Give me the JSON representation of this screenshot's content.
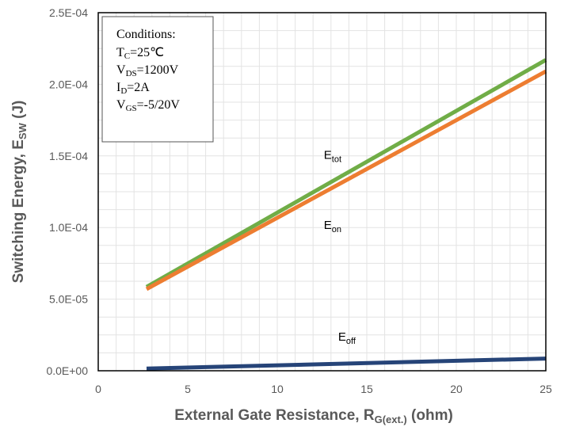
{
  "chart_data": {
    "type": "line",
    "xlabel": {
      "main": "External Gate Resistance, R",
      "sub": "G(ext.)",
      "suffix": " (ohm)"
    },
    "ylabel": {
      "main": "Switching Energy, E",
      "sub": "SW",
      "suffix": " (J)"
    },
    "xlim": [
      0,
      25
    ],
    "ylim": [
      0,
      0.00025
    ],
    "x_ticks": [
      {
        "value": 0,
        "label": "0"
      },
      {
        "value": 5,
        "label": "5"
      },
      {
        "value": 10,
        "label": "10"
      },
      {
        "value": 15,
        "label": "15"
      },
      {
        "value": 20,
        "label": "20"
      },
      {
        "value": 25,
        "label": "25"
      }
    ],
    "y_ticks": [
      {
        "value": 0,
        "label": "0.0E+00"
      },
      {
        "value": 5e-05,
        "label": "5.0E-05"
      },
      {
        "value": 0.0001,
        "label": "1.0E-04"
      },
      {
        "value": 0.00015,
        "label": "1.5E-04"
      },
      {
        "value": 0.0002,
        "label": "2.0E-04"
      },
      {
        "value": 0.00025,
        "label": "2.5E-04"
      }
    ],
    "grid": true,
    "series": [
      {
        "name": "E_tot",
        "main": "E",
        "sub": "tot",
        "color": "#70ad47",
        "x": [
          2.7,
          25
        ],
        "y": [
          5.85e-05,
          0.000217
        ],
        "label_at": {
          "x": 12.6,
          "y": 0.000148
        }
      },
      {
        "name": "E_on",
        "main": "E",
        "sub": "on",
        "color": "#ed7d31",
        "x": [
          2.7,
          25
        ],
        "y": [
          5.7e-05,
          0.000209
        ],
        "label_at": {
          "x": 12.6,
          "y": 9.9e-05
        }
      },
      {
        "name": "E_off",
        "main": "E",
        "sub": "off",
        "color": "#264478",
        "x": [
          2.7,
          25
        ],
        "y": [
          1.5e-06,
          8.5e-06
        ],
        "label_at": {
          "x": 13.4,
          "y": 2.1e-05
        }
      }
    ],
    "conditions": {
      "title": "Conditions:",
      "lines": [
        {
          "main": "T",
          "sub": "C",
          "rest": "=25℃"
        },
        {
          "main": "V",
          "sub": "DS",
          "rest": "=1200V"
        },
        {
          "main": "I",
          "sub": "D",
          "rest": "=2A"
        },
        {
          "main": "V",
          "sub": "GS",
          "rest": "=-5/20V"
        }
      ]
    }
  }
}
